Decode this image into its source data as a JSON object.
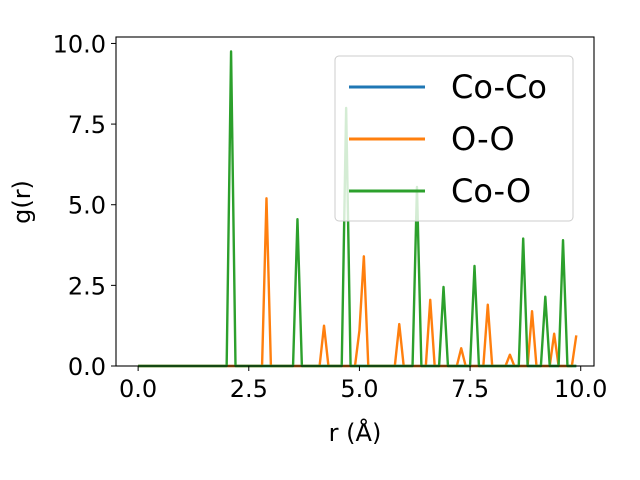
{
  "chart_data": {
    "type": "line",
    "title": "",
    "xlabel": "r (Å)",
    "ylabel": "g(r)",
    "xlim": [
      -0.5,
      10.3
    ],
    "ylim": [
      0,
      10.2
    ],
    "x_ticks": [
      "0.0",
      "2.5",
      "5.0",
      "7.5",
      "10.0"
    ],
    "y_ticks": [
      "0.0",
      "2.5",
      "5.0",
      "7.5",
      "10.0"
    ],
    "grid": false,
    "legend_position": "top-right",
    "series": [
      {
        "name": "Co-Co",
        "color": "#1f77b4",
        "x": [
          0.0,
          9.9
        ],
        "y": [
          0.0,
          0.0
        ]
      },
      {
        "name": "O-O",
        "color": "#ff7f0e",
        "x": [
          0.0,
          2.8,
          2.9,
          3.0,
          4.1,
          4.2,
          4.3,
          4.9,
          5.0,
          5.1,
          5.2,
          5.8,
          5.9,
          6.0,
          6.5,
          6.6,
          6.7,
          7.2,
          7.3,
          7.4,
          7.8,
          7.9,
          8.0,
          8.3,
          8.4,
          8.5,
          8.8,
          8.9,
          9.0,
          9.3,
          9.4,
          9.5,
          9.6,
          9.8,
          9.9
        ],
        "y": [
          0.0,
          0.0,
          5.2,
          0.0,
          0.0,
          1.25,
          0.0,
          0.0,
          1.1,
          3.4,
          0.0,
          0.0,
          1.3,
          0.0,
          0.0,
          2.05,
          0.0,
          0.0,
          0.55,
          0.0,
          0.0,
          1.9,
          0.0,
          0.0,
          0.35,
          0.0,
          0.0,
          1.7,
          0.0,
          0.0,
          1.0,
          0.0,
          0.0,
          0.0,
          0.95
        ]
      },
      {
        "name": "Co-O",
        "color": "#2ca02c",
        "x": [
          0.0,
          2.0,
          2.1,
          2.2,
          3.5,
          3.6,
          3.7,
          4.6,
          4.7,
          4.8,
          6.2,
          6.3,
          6.4,
          6.8,
          6.9,
          7.0,
          7.5,
          7.6,
          7.7,
          8.6,
          8.7,
          8.8,
          9.1,
          9.2,
          9.3,
          9.5,
          9.6,
          9.7,
          9.9
        ],
        "y": [
          0.0,
          0.0,
          9.75,
          0.0,
          0.0,
          4.55,
          0.0,
          0.0,
          8.0,
          0.0,
          0.0,
          5.55,
          0.0,
          0.0,
          2.45,
          0.0,
          0.0,
          3.1,
          0.0,
          0.0,
          3.95,
          0.0,
          0.0,
          2.15,
          0.0,
          0.0,
          3.9,
          0.0,
          0.0
        ]
      }
    ]
  }
}
